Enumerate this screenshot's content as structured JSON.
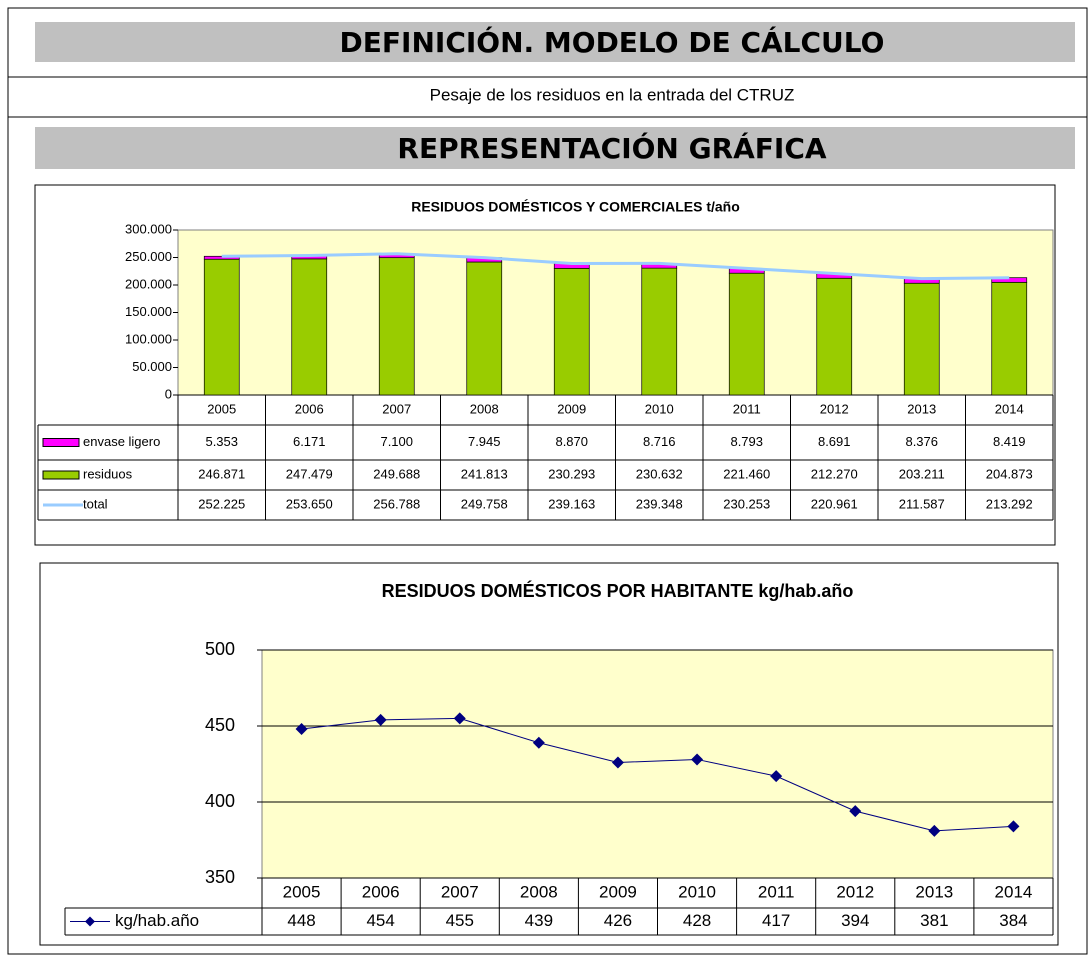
{
  "header": {
    "title": "DEFINICIÓN. MODELO DE CÁLCULO",
    "subtitle": "Pesaje de los residuos en la entrada del CTRUZ",
    "section": "REPRESENTACIÓN GRÁFICA"
  },
  "chart_data": [
    {
      "type": "bar",
      "stacked": true,
      "title": "RESIDUOS DOMÉSTICOS Y COMERCIALES t/año",
      "categories": [
        "2005",
        "2006",
        "2007",
        "2008",
        "2009",
        "2010",
        "2011",
        "2012",
        "2013",
        "2014"
      ],
      "series": [
        {
          "name": "envase ligero",
          "color": "#ff00ff",
          "values": [
            5353,
            6171,
            7100,
            7945,
            8870,
            8716,
            8793,
            8691,
            8376,
            8419
          ],
          "value_labels": [
            "5.353",
            "6.171",
            "7.100",
            "7.945",
            "8.870",
            "8.716",
            "8.793",
            "8.691",
            "8.376",
            "8.419"
          ]
        },
        {
          "name": "residuos",
          "color": "#99cc00",
          "values": [
            246871,
            247479,
            249688,
            241813,
            230293,
            230632,
            221460,
            212270,
            203211,
            204873
          ],
          "value_labels": [
            "246.871",
            "247.479",
            "249.688",
            "241.813",
            "230.293",
            "230.632",
            "221.460",
            "212.270",
            "203.211",
            "204.873"
          ]
        },
        {
          "name": "total",
          "color": "#99ccff",
          "line": true,
          "values": [
            252225,
            253650,
            256788,
            249758,
            239163,
            239348,
            230253,
            220961,
            211587,
            213292
          ],
          "value_labels": [
            "252.225",
            "253.650",
            "256.788",
            "249.758",
            "239.163",
            "239.348",
            "230.253",
            "220.961",
            "211.587",
            "213.292"
          ]
        }
      ],
      "ylim": [
        0,
        300000
      ],
      "yticks": [
        0,
        {
          "value": 50000,
          "label": "50.000"
        },
        {
          "value": 100000,
          "label": "100.000"
        },
        {
          "value": 150000,
          "label": "150.000"
        },
        {
          "value": 200000,
          "label": "200.000"
        },
        {
          "value": 250000,
          "label": "250.000"
        },
        {
          "value": 300000,
          "label": "300.000"
        }
      ],
      "grid": false
    },
    {
      "type": "line",
      "title": "RESIDUOS DOMÉSTICOS POR HABITANTE kg/hab.año",
      "categories": [
        "2005",
        "2006",
        "2007",
        "2008",
        "2009",
        "2010",
        "2011",
        "2012",
        "2013",
        "2014"
      ],
      "series": [
        {
          "name": "kg/hab.año",
          "color": "#000080",
          "values": [
            448,
            454,
            455,
            439,
            426,
            428,
            417,
            394,
            381,
            384
          ]
        }
      ],
      "ylim": [
        350,
        500
      ],
      "yticks": [
        350,
        400,
        450,
        500
      ],
      "grid": true
    }
  ]
}
